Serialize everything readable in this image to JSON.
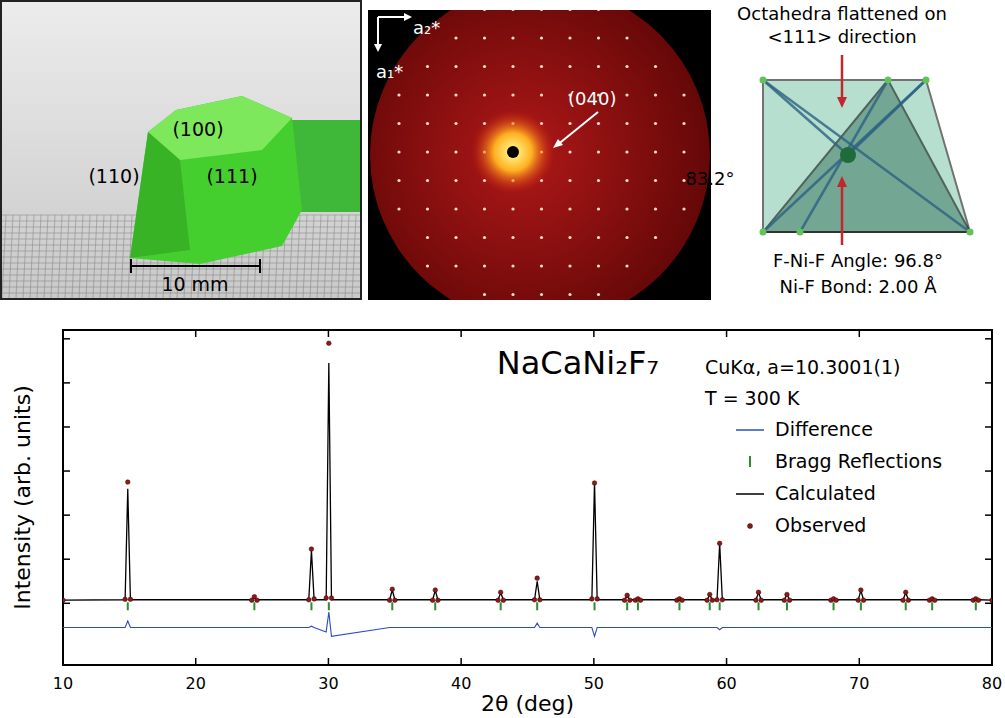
{
  "photo": {
    "faces": [
      "(100)",
      "(110)",
      "(111)"
    ],
    "scale_bar": "10 mm"
  },
  "diffraction": {
    "axes": [
      "a₂*",
      "a₁*"
    ],
    "spot": "(040)"
  },
  "octahedron": {
    "title": "Octahedra flattened on <111> direction",
    "angle_label": "83.2°",
    "f_ni_f_angle": "F-Ni-F Angle: 96.8°",
    "ni_f_bond": "Ni-F Bond: 2.00 Å"
  },
  "chart_data": {
    "type": "line",
    "title": "NaCaNi₂F₇",
    "x_label": "2θ (deg)",
    "y_label": "Intensity (arb. units)",
    "annotations": [
      "CuKα, a=10.3001(1)",
      "T = 300 K"
    ],
    "xlim": [
      10,
      80
    ],
    "xticks": [
      10,
      20,
      30,
      40,
      50,
      60,
      70,
      80
    ],
    "ylim": [
      -1.4,
      6.2
    ],
    "yticks": [
      0,
      1,
      2,
      3,
      4,
      5,
      6
    ],
    "tick_labels": "x",
    "legend": "upper right",
    "x": [
      10,
      14.68,
      14.88,
      15.08,
      24.22,
      24.42,
      24.62,
      28.52,
      28.72,
      28.92,
      29.83,
      30.03,
      30.23,
      34.61,
      34.81,
      35.01,
      37.85,
      38.05,
      38.25,
      42.78,
      42.98,
      43.18,
      45.53,
      45.73,
      45.93,
      49.85,
      50.05,
      50.25,
      52.31,
      52.51,
      52.71,
      53.12,
      53.32,
      53.52,
      56.25,
      56.45,
      56.65,
      58.53,
      58.73,
      58.93,
      59.28,
      59.48,
      59.68,
      62.21,
      62.41,
      62.61,
      64.35,
      64.55,
      64.75,
      67.86,
      68.06,
      68.26,
      69.92,
      70.12,
      70.32,
      73.3,
      73.5,
      73.7,
      75.29,
      75.49,
      75.69,
      78.58,
      78.78,
      78.98,
      80
    ],
    "series": [
      {
        "name": "Observed",
        "type": "scatter",
        "marker": "circle",
        "color": "#8b1a1a",
        "values": [
          0.07,
          0.09,
          2.75,
          0.09,
          0.07,
          0.15,
          0.07,
          0.08,
          1.23,
          0.1,
          0.12,
          5.9,
          0.12,
          0.07,
          0.32,
          0.07,
          0.07,
          0.3,
          0.07,
          0.07,
          0.25,
          0.07,
          0.08,
          0.57,
          0.08,
          0.1,
          2.73,
          0.1,
          0.07,
          0.18,
          0.07,
          0.07,
          0.1,
          0.07,
          0.07,
          0.1,
          0.07,
          0.07,
          0.2,
          0.07,
          0.08,
          1.36,
          0.08,
          0.07,
          0.25,
          0.07,
          0.07,
          0.2,
          0.07,
          0.07,
          0.1,
          0.07,
          0.07,
          0.3,
          0.07,
          0.07,
          0.25,
          0.07,
          0.07,
          0.1,
          0.07,
          0.07,
          0.1,
          0.07,
          0.07
        ]
      },
      {
        "name": "Calculated",
        "type": "line",
        "line_style": "solid",
        "color": "#000000",
        "values": [
          0.07,
          0.08,
          2.6,
          0.08,
          0.08,
          0.14,
          0.08,
          0.08,
          1.2,
          0.08,
          0.08,
          5.45,
          0.08,
          0.08,
          0.3,
          0.08,
          0.08,
          0.29,
          0.08,
          0.08,
          0.24,
          0.08,
          0.08,
          0.5,
          0.08,
          0.08,
          2.75,
          0.08,
          0.08,
          0.17,
          0.08,
          0.08,
          0.1,
          0.08,
          0.08,
          0.1,
          0.08,
          0.08,
          0.19,
          0.08,
          0.08,
          1.36,
          0.08,
          0.08,
          0.24,
          0.08,
          0.08,
          0.2,
          0.08,
          0.08,
          0.1,
          0.08,
          0.08,
          0.29,
          0.08,
          0.08,
          0.24,
          0.08,
          0.08,
          0.1,
          0.08,
          0.08,
          0.1,
          0.08,
          0.07
        ]
      },
      {
        "name": "Difference",
        "type": "line",
        "line_style": "solid",
        "color": "#2a4fbf",
        "values": [
          -0.55,
          -0.55,
          -0.4,
          -0.55,
          -0.55,
          -0.55,
          -0.55,
          -0.55,
          -0.52,
          -0.55,
          -0.65,
          -0.2,
          -0.75,
          -0.55,
          -0.55,
          -0.55,
          -0.55,
          -0.55,
          -0.55,
          -0.55,
          -0.55,
          -0.55,
          -0.55,
          -0.45,
          -0.55,
          -0.55,
          -0.75,
          -0.55,
          -0.55,
          -0.55,
          -0.55,
          -0.55,
          -0.55,
          -0.55,
          -0.55,
          -0.55,
          -0.55,
          -0.55,
          -0.55,
          -0.55,
          -0.55,
          -0.6,
          -0.55,
          -0.55,
          -0.55,
          -0.55,
          -0.55,
          -0.55,
          -0.55,
          -0.55,
          -0.55,
          -0.55,
          -0.55,
          -0.55,
          -0.55,
          -0.55,
          -0.55,
          -0.55,
          -0.55,
          -0.55,
          -0.55,
          -0.55,
          -0.55,
          -0.55,
          -0.55
        ]
      },
      {
        "name": "Bragg Reflections",
        "type": "rug",
        "marker": "tick",
        "color": "#2e8b2e",
        "x": [
          14.88,
          24.42,
          28.72,
          30.03,
          34.81,
          38.05,
          42.98,
          45.73,
          50.05,
          52.51,
          53.32,
          56.45,
          58.73,
          59.48,
          62.41,
          64.55,
          68.06,
          70.12,
          73.5,
          75.49,
          78.78
        ]
      }
    ]
  }
}
